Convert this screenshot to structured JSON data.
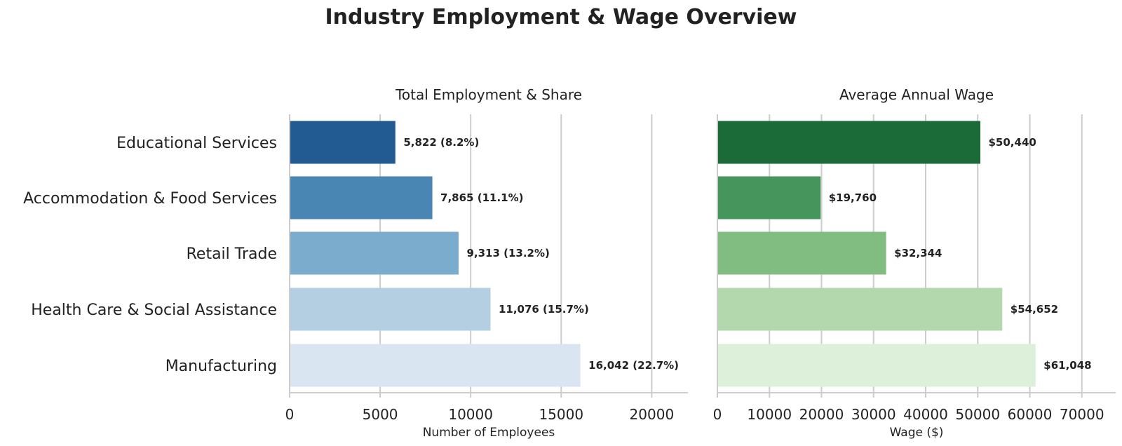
{
  "title": "Industry Employment & Wage Overview",
  "chart_data": [
    {
      "type": "bar",
      "orientation": "horizontal",
      "title": "Total Employment & Share",
      "xlabel": "Number of Employees",
      "ylabel": "",
      "xlim": [
        0,
        22000
      ],
      "xticks": [
        0,
        5000,
        10000,
        15000,
        20000
      ],
      "xtick_labels": [
        "0",
        "5000",
        "10000",
        "15000",
        "20000"
      ],
      "grid": "vertical",
      "categories": [
        "Educational Services",
        "Accommodation & Food Services",
        "Retail Trade",
        "Health Care & Social Assistance",
        "Manufacturing"
      ],
      "values": [
        5822,
        7865,
        9313,
        11076,
        16042
      ],
      "labels": [
        "5,822 (8.2%)",
        "7,865 (11.1%)",
        "9,313 (13.2%)",
        "11,076 (15.7%)",
        "16,042 (22.7%)"
      ],
      "colors": [
        "#225b92",
        "#4a86b4",
        "#7bacce",
        "#b4cfe1",
        "#d9e6f2"
      ]
    },
    {
      "type": "bar",
      "orientation": "horizontal",
      "title": "Average Annual Wage",
      "xlabel": "Wage ($)",
      "ylabel": "",
      "xlim": [
        0,
        76500
      ],
      "xticks": [
        0,
        10000,
        20000,
        30000,
        40000,
        50000,
        60000,
        70000
      ],
      "xtick_labels": [
        "0",
        "10000",
        "20000",
        "30000",
        "40000",
        "50000",
        "60000",
        "70000"
      ],
      "grid": "vertical",
      "categories": [
        "Educational Services",
        "Accommodation & Food Services",
        "Retail Trade",
        "Health Care & Social Assistance",
        "Manufacturing"
      ],
      "values": [
        50440,
        19760,
        32344,
        54652,
        61048
      ],
      "labels": [
        "$50,440",
        "$19,760",
        "$32,344",
        "$54,652",
        "$61,048"
      ],
      "colors": [
        "#1a6b37",
        "#45955c",
        "#81bc80",
        "#b3d8ae",
        "#ddf0da"
      ]
    }
  ]
}
